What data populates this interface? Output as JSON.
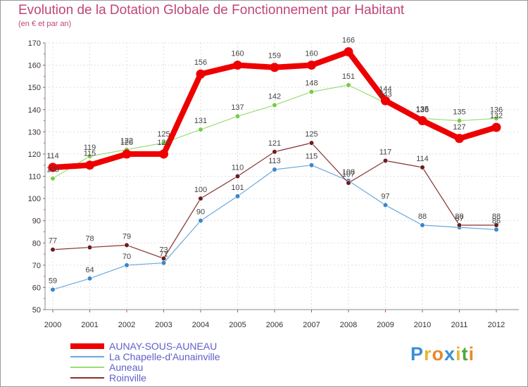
{
  "title": "Evolution de la Dotation Globale de Fonctionnement par Habitant",
  "subtitle": "(en € et par an)",
  "logo": {
    "letters": [
      "P",
      "r",
      "o",
      "x",
      "i",
      "t",
      "i"
    ],
    "colors": [
      "#3b8fd4",
      "#e8b534",
      "#e8892a",
      "#3b8fd4",
      "#e8b534",
      "#4fa83d",
      "#e8892a"
    ]
  },
  "chart_data": {
    "type": "line",
    "x": [
      2000,
      2001,
      2002,
      2003,
      2004,
      2005,
      2006,
      2007,
      2008,
      2009,
      2010,
      2011,
      2012
    ],
    "ylim": [
      50,
      170
    ],
    "yticks": [
      50,
      60,
      70,
      80,
      90,
      100,
      110,
      120,
      130,
      140,
      150,
      160,
      170
    ],
    "grid": true,
    "legend_position": "bottom-left",
    "series": [
      {
        "name": "AUNAY-SOUS-AUNEAU",
        "color": "#ee0000",
        "values": [
          114,
          115,
          120,
          120,
          156,
          160,
          159,
          160,
          166,
          144,
          135,
          127,
          132
        ]
      },
      {
        "name": "La Chapelle-d'Aunainville",
        "color": "#6aa8dc",
        "values": [
          59,
          64,
          70,
          71,
          90,
          101,
          113,
          115,
          108,
          97,
          88,
          87,
          86
        ]
      },
      {
        "name": "Auneau",
        "color": "#99dd77",
        "values": [
          109,
          119,
          122,
          125,
          131,
          137,
          142,
          148,
          151,
          143,
          136,
          135,
          136
        ]
      },
      {
        "name": "Roinville",
        "color": "#883030",
        "values": [
          77,
          78,
          79,
          73,
          100,
          110,
          121,
          125,
          107,
          117,
          114,
          88,
          88
        ]
      }
    ]
  }
}
